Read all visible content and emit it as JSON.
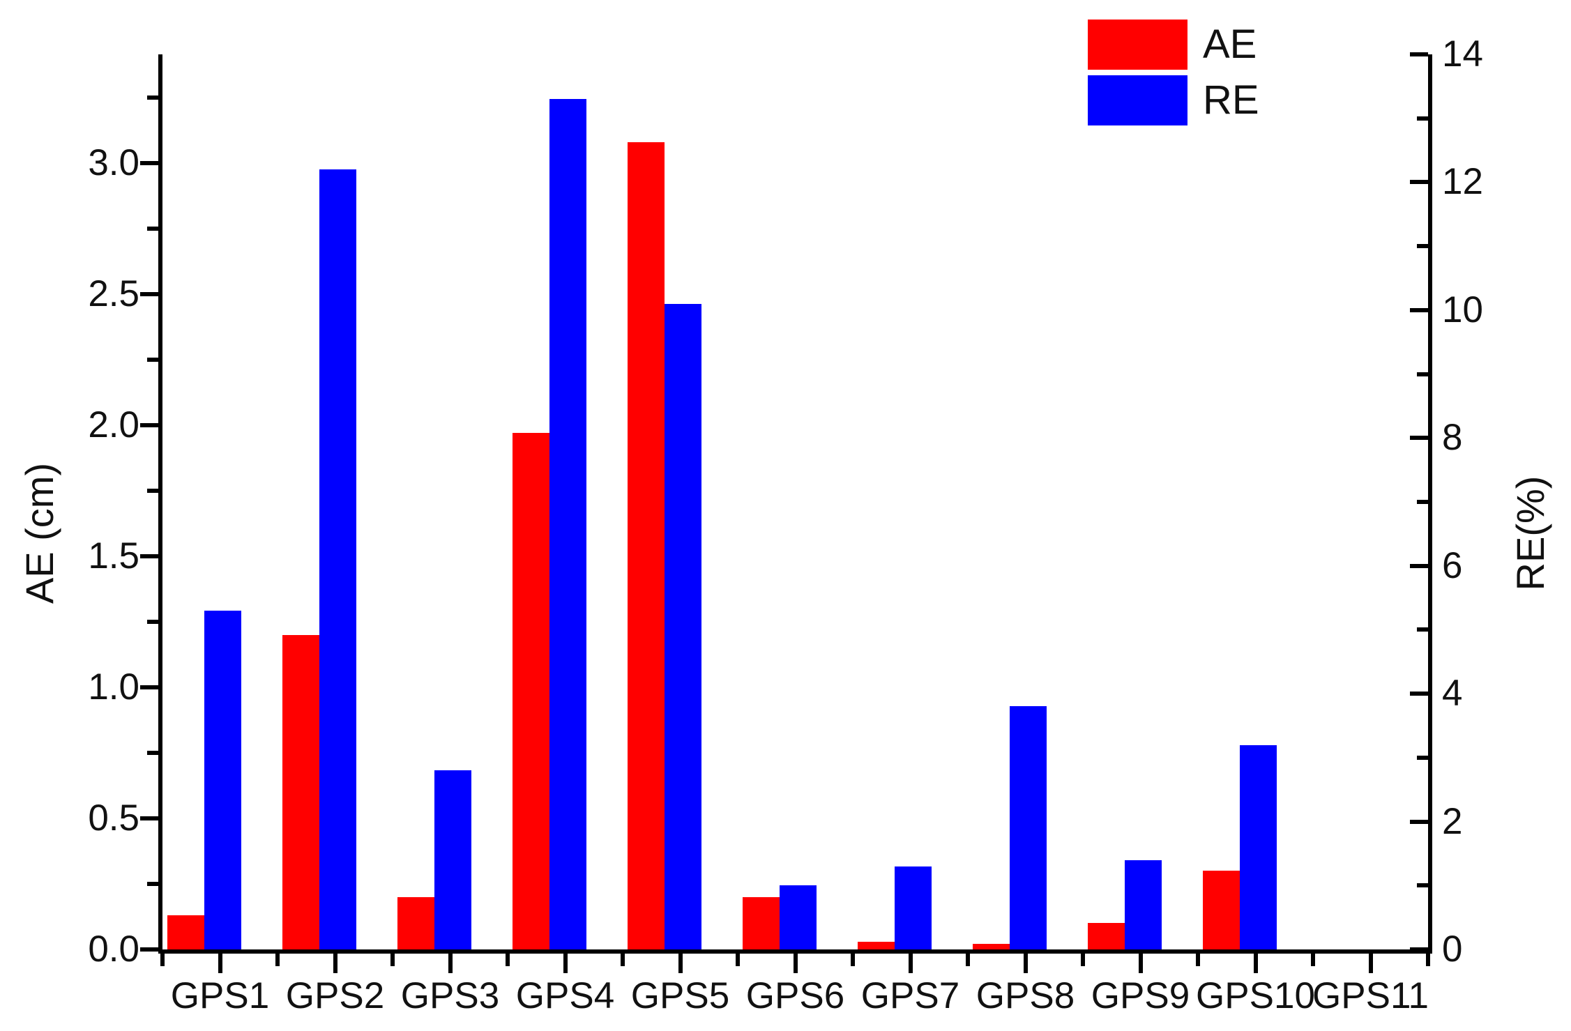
{
  "chart_data": {
    "type": "bar",
    "categories": [
      "GPS1",
      "GPS2",
      "GPS3",
      "GPS4",
      "GPS5",
      "GPS6",
      "GPS7",
      "GPS8",
      "GPS9",
      "GPS10",
      "GPS11"
    ],
    "series": [
      {
        "name": "AE",
        "axis": "left",
        "unit": "cm",
        "color": "#ff0000",
        "values": [
          0.13,
          1.2,
          0.2,
          1.97,
          3.08,
          0.2,
          0.03,
          0.02,
          0.1,
          0.3,
          0
        ]
      },
      {
        "name": "RE",
        "axis": "right",
        "unit": "%",
        "color": "#0000ff",
        "values": [
          5.3,
          12.2,
          2.8,
          13.3,
          10.1,
          1.0,
          1.3,
          3.8,
          1.4,
          3.2,
          0
        ]
      }
    ],
    "left_axis": {
      "label": "AE (cm)",
      "min": 0,
      "max": 3.4146,
      "major_tick_step": 0.5,
      "minor_tick_step": 0.25,
      "tick_labels": [
        "0.0",
        "0.5",
        "1.0",
        "1.5",
        "2.0",
        "2.5",
        "3.0"
      ]
    },
    "right_axis": {
      "label": "RE(%)",
      "min": 0,
      "max": 14,
      "major_tick_step": 2,
      "minor_tick_step": 1,
      "tick_labels": [
        "0",
        "2",
        "4",
        "6",
        "8",
        "10",
        "12",
        "14"
      ]
    },
    "x_axis": {
      "tick_labels": [
        "GPS1",
        "GPS2",
        "GPS3",
        "GPS4",
        "GPS5",
        "GPS6",
        "GPS7",
        "GPS8",
        "GPS9",
        "GPS10",
        "GPS11"
      ]
    },
    "legend_position": "top-right",
    "grid": false,
    "background": "#ffffff",
    "bar_colors": {
      "AE": "#ff0000",
      "RE": "#0000ff"
    }
  }
}
